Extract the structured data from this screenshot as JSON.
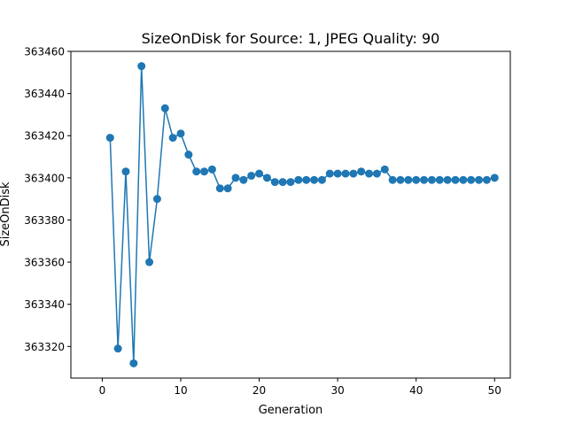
{
  "chart_data": {
    "type": "line",
    "title": "SizeOnDisk for Source: 1, JPEG Quality: 90",
    "xlabel": "Generation",
    "ylabel": "SizeOnDisk",
    "xlim": [
      -4.0,
      52.0
    ],
    "ylim": [
      363305,
      363460
    ],
    "xticks": [
      0,
      10,
      20,
      30,
      40,
      50
    ],
    "yticks": [
      363320,
      363340,
      363360,
      363380,
      363400,
      363420,
      363440,
      363460
    ],
    "grid": false,
    "marker": "circle",
    "color": "#1f77b4",
    "series": [
      {
        "x": [
          1,
          2,
          3,
          4,
          5,
          6,
          7,
          8,
          9,
          10,
          11,
          12,
          13,
          14,
          15,
          16,
          17,
          18,
          19,
          20,
          21,
          22,
          23,
          24,
          25,
          26,
          27,
          28,
          29,
          30,
          31,
          32,
          33,
          34,
          35,
          36,
          37,
          38,
          39,
          40,
          41,
          42,
          43,
          44,
          45,
          46,
          47,
          48,
          49,
          50
        ],
        "values": [
          363419,
          363319,
          363403,
          363312,
          363453,
          363360,
          363390,
          363433,
          363419,
          363421,
          363411,
          363403,
          363403,
          363404,
          363395,
          363395,
          363400,
          363399,
          363401,
          363402,
          363400,
          363398,
          363398,
          363398,
          363399,
          363399,
          363399,
          363399,
          363402,
          363402,
          363402,
          363402,
          363403,
          363402,
          363402,
          363404,
          363399,
          363399,
          363399,
          363399,
          363399,
          363399,
          363399,
          363399,
          363399,
          363399,
          363399,
          363399,
          363399,
          363400
        ]
      }
    ]
  }
}
